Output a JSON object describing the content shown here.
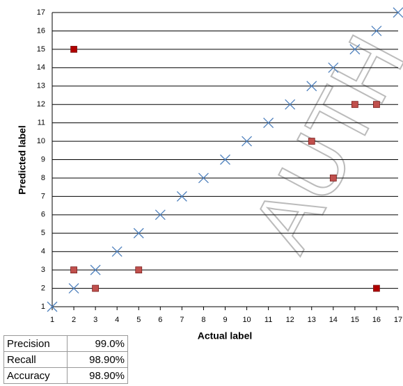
{
  "chart_data": {
    "type": "scatter",
    "xlabel": "Actual label",
    "ylabel": "Predicted label",
    "watermark": "AUTH",
    "xlim": [
      1,
      17
    ],
    "ylim": [
      1,
      17
    ],
    "xticks": [
      1,
      2,
      3,
      4,
      5,
      6,
      7,
      8,
      9,
      10,
      11,
      12,
      13,
      14,
      15,
      16,
      17
    ],
    "yticks": [
      1,
      2,
      3,
      4,
      5,
      6,
      7,
      8,
      9,
      10,
      11,
      12,
      13,
      14,
      15,
      16,
      17
    ],
    "grid": true,
    "series": [
      {
        "marker": "x",
        "color": "#4f81bd",
        "x": [
          1,
          2,
          3,
          4,
          5,
          6,
          7,
          8,
          9,
          10,
          11,
          12,
          13,
          14,
          15,
          16,
          17
        ],
        "values": [
          1,
          2,
          3,
          4,
          5,
          6,
          7,
          8,
          9,
          10,
          11,
          12,
          13,
          14,
          15,
          16,
          17
        ]
      },
      {
        "marker": "square",
        "color": "#c0504d",
        "colors": [
          "#b00000",
          "#c0504d",
          "#c0504d",
          "#c0504d",
          "#c0504d",
          "#c0504d",
          "#c0504d",
          "#c0504d",
          "#b00000"
        ],
        "x": [
          2,
          2,
          3,
          5,
          13,
          14,
          15,
          16,
          16
        ],
        "values": [
          15,
          3,
          2,
          3,
          10,
          8,
          12,
          12,
          2
        ]
      }
    ]
  },
  "table": {
    "rows": [
      [
        "Precision",
        "99.0%"
      ],
      [
        "Recall",
        "98.90%"
      ],
      [
        "Accuracy",
        "98.90%"
      ]
    ]
  }
}
